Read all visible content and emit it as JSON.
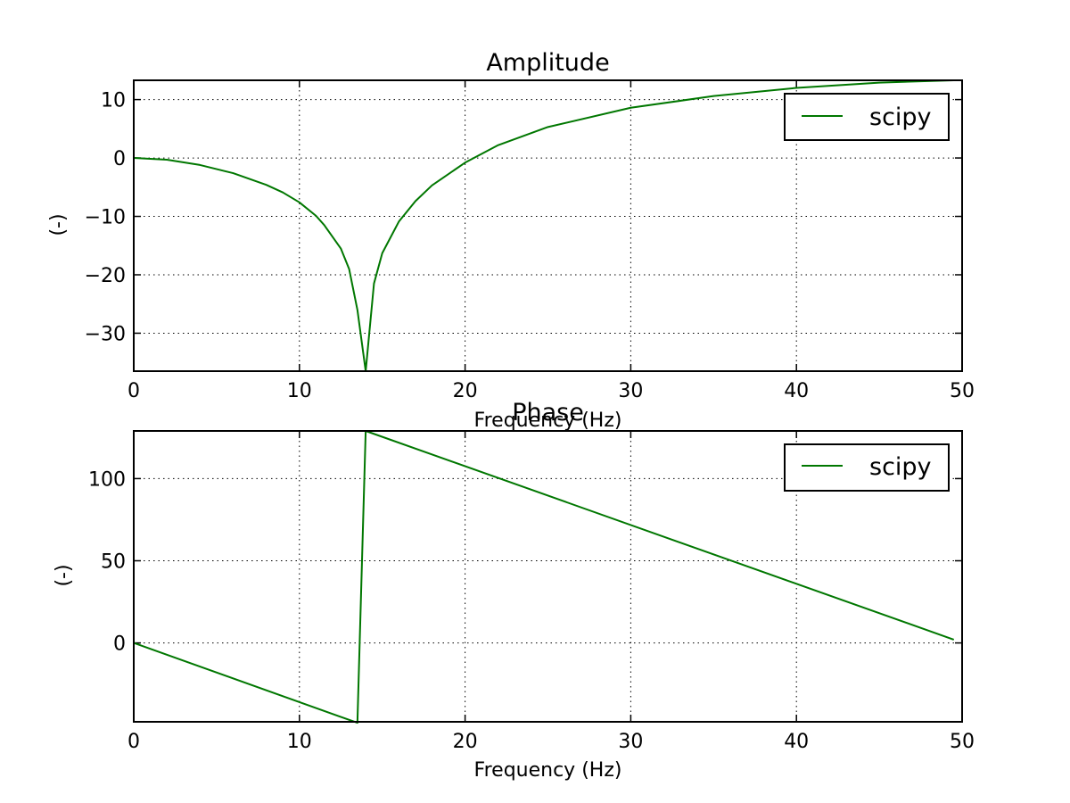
{
  "chart_data": [
    {
      "type": "line",
      "title": "Amplitude",
      "xlabel": "Frequency (Hz)",
      "ylabel": "(-)",
      "xlim": [
        0,
        50
      ],
      "ylim": [
        -36.5,
        13.3
      ],
      "xticks": [
        0,
        10,
        20,
        30,
        40,
        50
      ],
      "yticks": [
        -30,
        -20,
        -10,
        0,
        10
      ],
      "grid": true,
      "legend_position": "top-right",
      "color": "#007700",
      "series": [
        {
          "name": "scipy",
          "x": [
            0,
            2,
            4,
            6,
            8,
            9,
            10,
            11,
            11.5,
            12,
            12.5,
            13,
            13.5,
            14,
            14.5,
            15,
            16,
            17,
            18,
            20,
            22,
            25,
            30,
            35,
            40,
            45,
            49.5
          ],
          "y": [
            0,
            -0.3,
            -1.2,
            -2.6,
            -4.6,
            -5.9,
            -7.6,
            -9.9,
            -11.5,
            -13.5,
            -15.5,
            -19,
            -26,
            -36.5,
            -21.5,
            -16.3,
            -10.9,
            -7.4,
            -4.7,
            -0.8,
            2.2,
            5.3,
            8.6,
            10.6,
            12.0,
            12.9,
            13.3
          ]
        }
      ]
    },
    {
      "type": "line",
      "title": "Phase",
      "xlabel": "Frequency (Hz)",
      "ylabel": "(-)",
      "xlim": [
        0,
        50
      ],
      "ylim": [
        -48,
        129
      ],
      "xticks": [
        0,
        10,
        20,
        30,
        40,
        50
      ],
      "yticks": [
        0,
        50,
        100
      ],
      "grid": true,
      "legend_position": "top-right",
      "color": "#007700",
      "series": [
        {
          "name": "scipy",
          "x": [
            0,
            13.5,
            14,
            49.5
          ],
          "y": [
            0,
            -48.6,
            129,
            2
          ]
        }
      ]
    }
  ]
}
